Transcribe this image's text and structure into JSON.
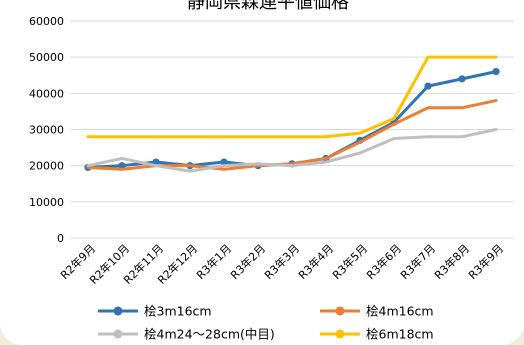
{
  "chart_data": {
    "type": "line",
    "title": "静岡県森連平値価格",
    "categories": [
      "R2年9月",
      "R2年10月",
      "R2年11月",
      "R2年12月",
      "R3年1月",
      "R3年2月",
      "R3年3月",
      "R3年4月",
      "R3年5月",
      "R3年6月",
      "R3年7月",
      "R3年8月",
      "R3年9月"
    ],
    "ylim": [
      0,
      60000
    ],
    "yticks": [
      "0",
      "10000",
      "20000",
      "30000",
      "40000",
      "50000",
      "60000"
    ],
    "grid": true,
    "legend_position": "bottom",
    "series": [
      {
        "name": "桧3m16cm",
        "color": "#2e75b6",
        "values": [
          19500,
          20000,
          21000,
          20000,
          21000,
          20000,
          20500,
          22000,
          27000,
          32000,
          42000,
          44000,
          46000
        ]
      },
      {
        "name": "桧4m16cm",
        "color": "#ed7d31",
        "values": [
          19500,
          19000,
          20000,
          20000,
          19000,
          20000,
          20500,
          22000,
          26500,
          31500,
          36000,
          36000,
          38000
        ]
      },
      {
        "name": "桧4m24～28cm(中目)",
        "color": "#bfbfbf",
        "values": [
          20000,
          22000,
          20000,
          18500,
          20000,
          20500,
          20000,
          21000,
          23500,
          27500,
          28000,
          28000,
          30000
        ]
      },
      {
        "name": "桧6m18cm",
        "color": "#ffc000",
        "values": [
          28000,
          28000,
          28000,
          28000,
          28000,
          28000,
          28000,
          28000,
          29000,
          33000,
          50000,
          50000,
          50000
        ]
      }
    ]
  }
}
